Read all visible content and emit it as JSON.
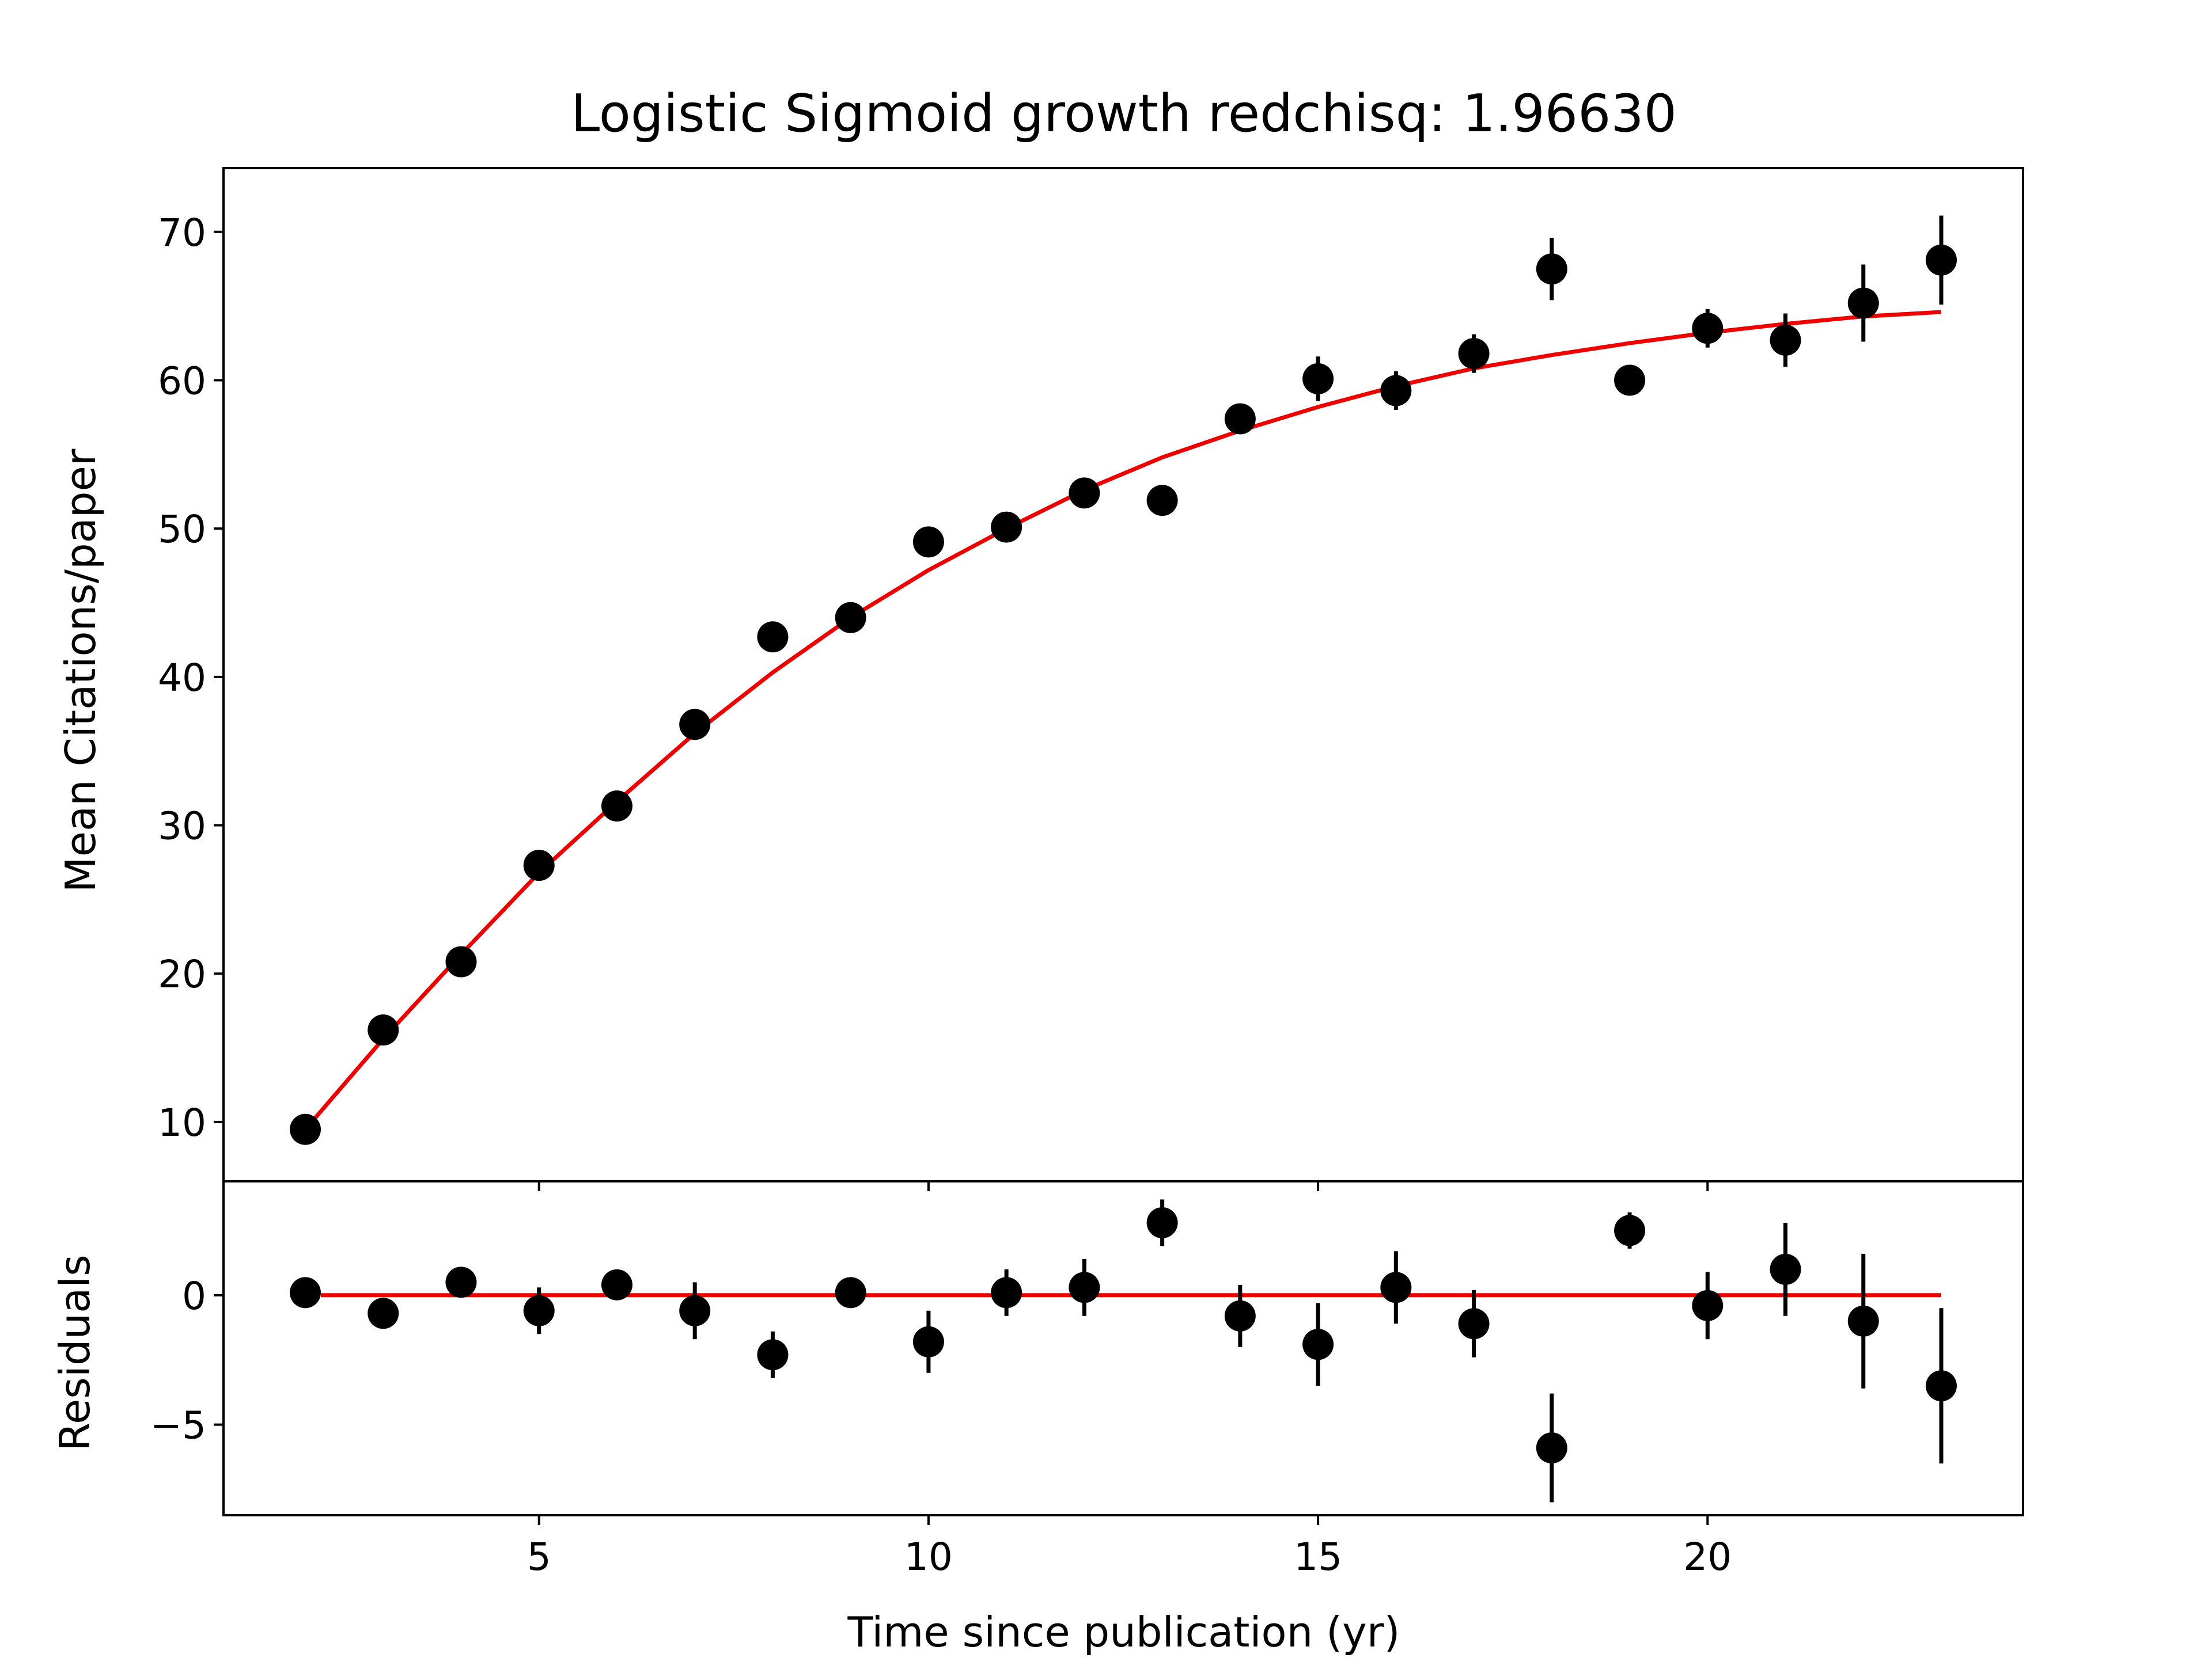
{
  "title": "Logistic Sigmoid growth redchisq: 1.96630",
  "colors": {
    "fit": "#ee0000",
    "points": "#000000",
    "axes": "#000000"
  },
  "chart_data": [
    {
      "type": "scatter",
      "panel": "main",
      "xlabel": "",
      "ylabel": "Mean Citations/paper",
      "xlim": [
        0.95,
        24.05
      ],
      "ylim": [
        6,
        74.3
      ],
      "xticks": [
        5,
        10,
        15,
        20
      ],
      "yticks": [
        10,
        20,
        30,
        40,
        50,
        60,
        70
      ],
      "show_x_ticklabels": false,
      "points": {
        "x": [
          2,
          3,
          4,
          5,
          6,
          7,
          8,
          9,
          10,
          11,
          12,
          13,
          14,
          15,
          16,
          17,
          18,
          19,
          20,
          21,
          22,
          23
        ],
        "y": [
          9.5,
          16.2,
          20.8,
          27.3,
          31.3,
          36.8,
          42.7,
          44.0,
          49.1,
          50.1,
          52.4,
          51.9,
          57.4,
          60.1,
          59.3,
          61.8,
          67.5,
          60.0,
          63.5,
          62.7,
          65.2,
          68.1
        ],
        "yerr": [
          0.2,
          0.3,
          0.2,
          0.3,
          0.3,
          0.6,
          0.3,
          0.2,
          1.0,
          0.2,
          0.4,
          0.2,
          1.0,
          1.5,
          1.3,
          1.3,
          2.1,
          0.3,
          1.3,
          1.8,
          2.6,
          3.0
        ]
      },
      "fit": {
        "name": "",
        "x": [
          2,
          3,
          4,
          5,
          6,
          7,
          8,
          9,
          10,
          11,
          12,
          13,
          14,
          15,
          16,
          17,
          18,
          19,
          20,
          21,
          22,
          23
        ],
        "y": [
          9.5,
          15.6,
          21.3,
          26.8,
          31.6,
          36.2,
          40.3,
          44.0,
          47.2,
          50.0,
          52.6,
          54.8,
          56.6,
          58.2,
          59.6,
          60.8,
          61.7,
          62.5,
          63.2,
          63.8,
          64.3,
          64.6
        ]
      }
    },
    {
      "type": "scatter",
      "panel": "residuals",
      "xlabel": "Time since publication (yr)",
      "ylabel": "Residuals",
      "xlim": [
        0.95,
        24.05
      ],
      "ylim": [
        -8.5,
        4.4
      ],
      "xticks": [
        5,
        10,
        15,
        20
      ],
      "yticks": [
        -5,
        0
      ],
      "ytick_labels": [
        "−5",
        "0"
      ],
      "points": {
        "x": [
          2,
          3,
          4,
          5,
          6,
          7,
          8,
          9,
          10,
          11,
          12,
          13,
          14,
          15,
          16,
          17,
          18,
          19,
          20,
          21,
          22,
          23
        ],
        "y": [
          0.1,
          -0.7,
          0.5,
          -0.6,
          0.4,
          -0.6,
          -2.3,
          0.1,
          -1.8,
          0.1,
          0.3,
          2.8,
          -0.8,
          -1.9,
          0.3,
          -1.1,
          -5.9,
          2.5,
          -0.4,
          1.0,
          -1.0,
          -3.5
        ],
        "yerr": [
          0.2,
          0.3,
          0.2,
          0.9,
          0.3,
          1.1,
          0.9,
          0.2,
          1.2,
          0.9,
          1.1,
          0.9,
          1.2,
          1.6,
          1.4,
          1.3,
          2.1,
          0.7,
          1.3,
          1.8,
          2.6,
          3.0
        ]
      },
      "fit": {
        "name": "",
        "x": [
          2.2,
          23
        ],
        "y": [
          0,
          0
        ]
      }
    }
  ]
}
